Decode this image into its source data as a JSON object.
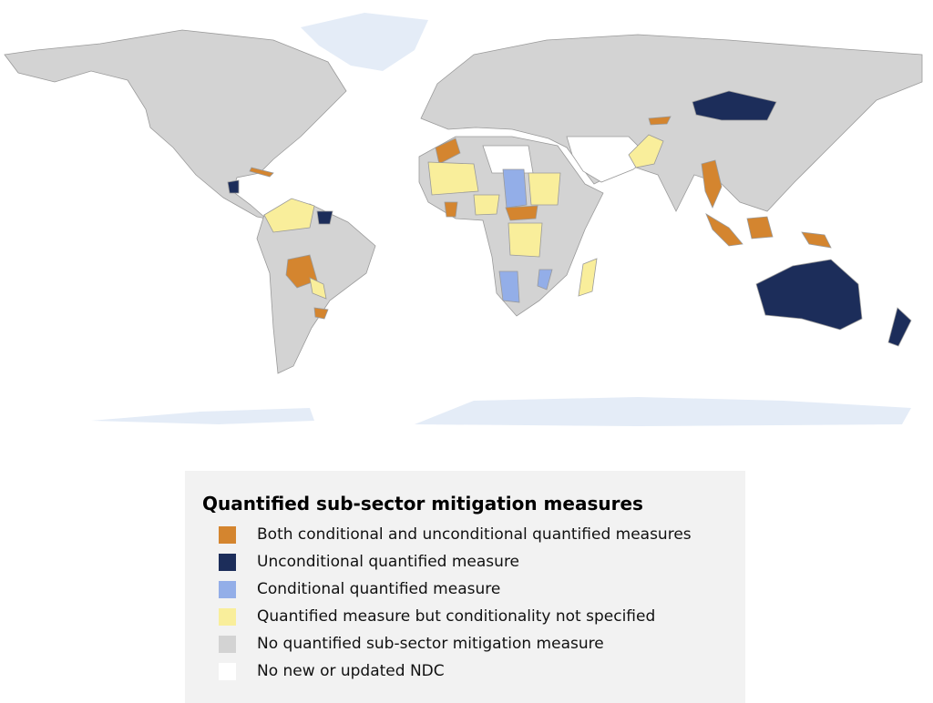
{
  "legend": {
    "title": "Quantified sub-sector mitigation measures",
    "items": [
      {
        "label": "Both conditional and unconditional quantified measures",
        "color": "#d4852f"
      },
      {
        "label": "Unconditional quantified measure",
        "color": "#1c2d5a"
      },
      {
        "label": "Conditional quantified measure",
        "color": "#93aee8"
      },
      {
        "label": "Quantified measure but conditionality not specified",
        "color": "#f9ee9b"
      },
      {
        "label": "No quantified sub-sector mitigation measure",
        "color": "#d3d3d3"
      },
      {
        "label": "No new or updated NDC",
        "color": "#ffffff"
      }
    ]
  }
}
